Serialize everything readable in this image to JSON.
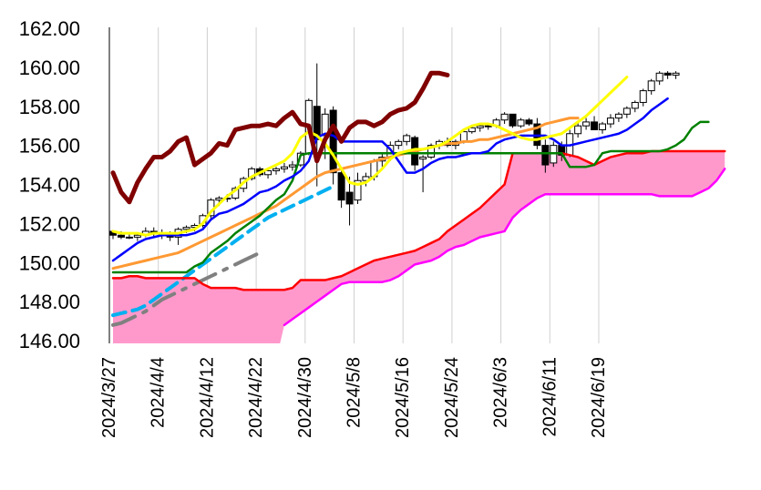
{
  "chart_data": {
    "type": "line",
    "title": "",
    "xlabel": "",
    "ylabel": "",
    "ylim": [
      146.0,
      162.0
    ],
    "yticks": [
      "162.00",
      "160.00",
      "158.00",
      "156.00",
      "154.00",
      "152.00",
      "150.00",
      "148.00",
      "146.00"
    ],
    "xticks": [
      "2024/3/27",
      "2024/4/4",
      "2024/4/12",
      "2024/4/22",
      "2024/4/30",
      "2024/5/8",
      "2024/5/16",
      "2024/5/24",
      "2024/6/3",
      "2024/6/11",
      "2024/6/19"
    ],
    "grid": "vertical",
    "legend": "none",
    "colors": {
      "candle_up": "#ffffff",
      "candle_down": "#000000",
      "cloud_fill": "#ff99cc",
      "span_a": "#ff0000",
      "span_b": "#ff00ff",
      "lagging": "#800000",
      "conversion": "#0000ff",
      "base": "#008000",
      "ma_short": "#ffff00",
      "ma_mid": "#ff9933",
      "ma_long_dash": "#00b0f0",
      "ma_longer_dashdot": "#808080"
    },
    "candles": {
      "first_date": "2024/3/27",
      "ohlc": [
        [
          151.6,
          151.6,
          151.2,
          151.4
        ],
        [
          151.4,
          151.6,
          151.2,
          151.3
        ],
        [
          151.3,
          151.5,
          151.2,
          151.3
        ],
        [
          151.3,
          151.5,
          151.1,
          151.4
        ],
        [
          151.4,
          151.8,
          151.3,
          151.6
        ],
        [
          151.6,
          151.8,
          151.3,
          151.5
        ],
        [
          151.5,
          151.7,
          151.2,
          151.4
        ],
        [
          151.4,
          151.6,
          151.1,
          151.3
        ],
        [
          151.3,
          151.8,
          150.9,
          151.7
        ],
        [
          151.7,
          151.9,
          151.5,
          151.8
        ],
        [
          151.8,
          152.0,
          151.6,
          151.9
        ],
        [
          151.9,
          152.5,
          151.8,
          152.4
        ],
        [
          152.4,
          153.3,
          152.2,
          153.2
        ],
        [
          153.2,
          153.4,
          152.9,
          153.3
        ],
        [
          153.3,
          153.5,
          153.1,
          153.3
        ],
        [
          153.3,
          153.9,
          153.2,
          153.8
        ],
        [
          153.8,
          154.4,
          153.6,
          154.3
        ],
        [
          154.3,
          154.9,
          154.2,
          154.8
        ],
        [
          154.8,
          154.9,
          154.4,
          154.5
        ],
        [
          154.5,
          154.8,
          154.3,
          154.7
        ],
        [
          154.7,
          154.9,
          154.5,
          154.8
        ],
        [
          154.8,
          155.1,
          154.6,
          154.9
        ],
        [
          154.9,
          155.2,
          154.7,
          155.0
        ],
        [
          155.0,
          155.7,
          154.9,
          155.6
        ],
        [
          155.6,
          158.4,
          155.5,
          158.3
        ],
        [
          158.0,
          160.2,
          153.9,
          156.3
        ],
        [
          156.5,
          157.9,
          155.3,
          157.6
        ],
        [
          157.8,
          158.0,
          154.0,
          154.6
        ],
        [
          154.6,
          154.7,
          152.8,
          153.2
        ],
        [
          153.6,
          154.4,
          151.9,
          153.0
        ],
        [
          153.2,
          154.6,
          153.0,
          154.2
        ],
        [
          154.2,
          154.6,
          153.9,
          154.4
        ],
        [
          154.4,
          155.3,
          154.2,
          155.2
        ],
        [
          155.2,
          155.6,
          154.9,
          155.4
        ],
        [
          155.4,
          156.2,
          155.2,
          156.0
        ],
        [
          156.0,
          156.3,
          155.8,
          156.2
        ],
        [
          156.2,
          156.6,
          156.0,
          156.5
        ],
        [
          156.4,
          156.5,
          154.7,
          155.0
        ],
        [
          155.3,
          155.5,
          153.6,
          155.4
        ],
        [
          155.4,
          156.1,
          155.3,
          156.0
        ],
        [
          156.0,
          156.3,
          155.8,
          156.2
        ],
        [
          156.2,
          156.4,
          155.9,
          156.0
        ],
        [
          156.0,
          156.3,
          155.8,
          156.2
        ],
        [
          156.2,
          156.8,
          156.1,
          156.7
        ],
        [
          156.7,
          157.0,
          156.6,
          156.9
        ],
        [
          156.9,
          157.1,
          156.7,
          157.0
        ],
        [
          157.0,
          157.1,
          156.8,
          157.0
        ],
        [
          157.0,
          157.4,
          156.9,
          157.3
        ],
        [
          157.3,
          157.7,
          157.1,
          157.6
        ],
        [
          157.6,
          157.6,
          156.9,
          157.0
        ],
        [
          157.0,
          157.4,
          156.9,
          157.3
        ],
        [
          157.3,
          157.4,
          157.0,
          157.1
        ],
        [
          157.1,
          157.4,
          155.8,
          156.0
        ],
        [
          156.0,
          156.3,
          154.6,
          155.0
        ],
        [
          155.1,
          156.2,
          154.9,
          156.0
        ],
        [
          156.0,
          156.2,
          155.2,
          155.5
        ],
        [
          155.5,
          156.8,
          155.4,
          156.6
        ],
        [
          156.6,
          157.2,
          156.4,
          157.0
        ],
        [
          157.0,
          157.4,
          156.8,
          157.2
        ],
        [
          157.2,
          157.5,
          156.9,
          156.8
        ],
        [
          156.8,
          157.2,
          156.6,
          157.1
        ],
        [
          157.1,
          157.6,
          156.9,
          157.4
        ],
        [
          157.4,
          157.7,
          157.2,
          157.6
        ],
        [
          157.6,
          158.0,
          157.4,
          157.9
        ],
        [
          157.9,
          158.3,
          157.7,
          158.2
        ],
        [
          158.2,
          158.9,
          158.0,
          158.8
        ],
        [
          158.8,
          159.4,
          158.6,
          159.3
        ],
        [
          159.3,
          159.8,
          159.1,
          159.7
        ],
        [
          159.7,
          159.8,
          159.4,
          159.6
        ],
        [
          159.6,
          159.8,
          159.4,
          159.7
        ]
      ]
    },
    "series": [
      {
        "key": "span_a",
        "values": [
          149.2,
          149.2,
          149.3,
          149.3,
          149.2,
          149.2,
          149.2,
          149.2,
          149.2,
          149.2,
          149.2,
          148.9,
          148.7,
          148.7,
          148.7,
          148.7,
          148.6,
          148.6,
          148.6,
          148.6,
          148.6,
          148.6,
          148.7,
          149.1,
          149.1,
          149.1,
          149.1,
          149.2,
          149.3,
          149.5,
          149.7,
          149.9,
          150.1,
          150.2,
          150.3,
          150.4,
          150.5,
          150.6,
          150.8,
          151.0,
          151.2,
          151.6,
          151.9,
          152.2,
          152.5,
          152.8,
          153.2,
          153.6,
          154.0,
          155.6,
          155.6,
          155.6,
          155.6,
          155.6,
          155.6,
          155.6,
          155.5,
          155.4,
          155.2,
          155.0,
          155.2,
          155.4,
          155.5,
          155.6,
          155.6,
          155.6,
          155.7,
          155.7,
          155.7,
          155.7,
          155.7,
          155.7,
          155.7,
          155.7,
          155.7,
          155.7
        ]
      },
      {
        "key": "span_b",
        "values": [
          null,
          null,
          null,
          null,
          null,
          null,
          null,
          null,
          null,
          null,
          null,
          null,
          null,
          null,
          null,
          null,
          null,
          null,
          null,
          null,
          null,
          146.8,
          147.1,
          147.4,
          147.7,
          148.0,
          148.3,
          148.6,
          148.9,
          149.0,
          149.0,
          149.0,
          149.0,
          149.0,
          149.1,
          149.3,
          149.6,
          149.9,
          150.0,
          150.1,
          150.3,
          150.6,
          150.8,
          150.9,
          151.1,
          151.3,
          151.4,
          151.5,
          151.6,
          152.3,
          152.7,
          153.0,
          153.3,
          153.5,
          153.5,
          153.5,
          153.5,
          153.5,
          153.5,
          153.5,
          153.5,
          153.5,
          153.5,
          153.5,
          153.5,
          153.5,
          153.5,
          153.4,
          153.4,
          153.4,
          153.4,
          153.4,
          153.6,
          153.8,
          154.2,
          154.8
        ]
      },
      {
        "key": "lagging",
        "values": [
          154.6,
          153.6,
          153.1,
          154.1,
          154.8,
          155.4,
          155.4,
          155.7,
          156.2,
          156.4,
          155.0,
          155.3,
          155.6,
          156.1,
          156.0,
          156.8,
          156.9,
          157.0,
          157.0,
          157.1,
          157.0,
          157.4,
          157.7,
          157.1,
          157.0,
          155.2,
          156.3,
          157.0,
          156.2,
          156.9,
          157.2,
          157.2,
          157.0,
          157.2,
          157.6,
          157.8,
          157.9,
          158.2,
          158.9,
          159.7,
          159.7,
          159.6
        ]
      },
      {
        "key": "conversion",
        "values": [
          150.1,
          150.4,
          150.7,
          151.0,
          151.2,
          151.3,
          151.4,
          151.4,
          151.4,
          151.4,
          151.5,
          151.7,
          152.2,
          152.5,
          152.6,
          152.8,
          153.0,
          153.3,
          153.6,
          153.7,
          153.9,
          154.2,
          154.4,
          154.7,
          155.2,
          156.4,
          156.6,
          156.5,
          156.2,
          156.2,
          156.2,
          156.2,
          156.2,
          156.2,
          155.8,
          155.2,
          154.6,
          154.6,
          154.8,
          155.1,
          155.3,
          155.4,
          155.4,
          155.5,
          155.6,
          155.6,
          155.7,
          156.1,
          156.3,
          156.4,
          156.5,
          156.5,
          156.5,
          156.5,
          156.3,
          156.0,
          156.0,
          156.1,
          156.2,
          156.3,
          156.4,
          156.5,
          156.6,
          156.8,
          157.1,
          157.4,
          157.8,
          158.1,
          158.4
        ]
      },
      {
        "key": "base",
        "values": [
          149.5,
          149.5,
          149.5,
          149.5,
          149.5,
          149.5,
          149.5,
          149.5,
          149.5,
          149.5,
          149.8,
          150.0,
          150.5,
          150.8,
          151.1,
          151.5,
          151.8,
          152.1,
          152.4,
          152.8,
          153.2,
          153.5,
          154.2,
          155.5,
          155.6,
          155.6,
          155.6,
          155.6,
          155.6,
          155.6,
          155.6,
          155.6,
          155.6,
          155.6,
          155.6,
          155.6,
          155.6,
          155.6,
          155.6,
          155.6,
          155.6,
          155.6,
          155.6,
          155.6,
          155.6,
          155.6,
          155.6,
          155.6,
          155.6,
          155.6,
          155.6,
          155.6,
          155.6,
          155.6,
          155.6,
          155.6,
          154.9,
          154.9,
          154.9,
          155.0,
          155.6,
          155.7,
          155.7,
          155.7,
          155.7,
          155.7,
          155.7,
          155.7,
          155.8,
          156.0,
          156.3,
          156.9,
          157.2,
          157.2
        ]
      },
      {
        "key": "ma_short",
        "values": [
          151.6,
          151.5,
          151.5,
          151.5,
          151.4,
          151.5,
          151.5,
          151.5,
          151.5,
          151.6,
          151.7,
          152.0,
          152.6,
          153.0,
          153.4,
          153.7,
          154.1,
          154.4,
          154.6,
          154.8,
          155.0,
          155.2,
          155.6,
          156.4,
          156.7,
          156.5,
          156.1,
          155.5,
          154.8,
          154.1,
          154.0,
          154.1,
          154.4,
          154.8,
          155.3,
          155.6,
          155.7,
          155.8,
          155.8,
          155.9,
          156.0,
          156.2,
          156.5,
          156.8,
          157.0,
          157.1,
          157.1,
          157.0,
          156.8,
          156.6,
          156.4,
          156.3,
          156.3,
          156.4,
          156.5,
          156.6,
          156.9,
          157.2,
          157.5,
          157.9,
          158.3,
          158.7,
          159.1,
          159.5
        ]
      },
      {
        "key": "ma_mid",
        "values": [
          149.7,
          149.8,
          149.9,
          150.0,
          150.1,
          150.2,
          150.3,
          150.4,
          150.5,
          150.7,
          150.9,
          151.1,
          151.3,
          151.5,
          151.7,
          151.9,
          152.1,
          152.3,
          152.5,
          152.7,
          152.9,
          153.2,
          153.5,
          153.8,
          154.1,
          154.4,
          154.6,
          154.7,
          154.8,
          154.9,
          155.0,
          155.1,
          155.2,
          155.3,
          155.4,
          155.5,
          155.6,
          155.7,
          155.8,
          155.9,
          156.0,
          156.1,
          156.1,
          156.2,
          156.2,
          156.3,
          156.3,
          156.4,
          156.5,
          156.6,
          156.7,
          156.8,
          156.9,
          157.1,
          157.2,
          157.3,
          157.4,
          157.4
        ]
      },
      {
        "key": "ma_long_dash",
        "values": [
          147.3,
          147.4,
          147.5,
          147.6,
          147.8,
          148.1,
          148.4,
          148.7,
          149.0,
          149.3,
          149.6,
          149.9,
          150.2,
          150.5,
          150.8,
          151.1,
          151.4,
          151.7,
          152.0,
          152.3,
          152.5,
          152.7,
          152.9,
          153.1,
          153.3,
          153.5,
          153.7,
          153.9
        ]
      },
      {
        "key": "ma_longer_dashdot",
        "values": [
          146.8,
          146.9,
          147.1,
          147.3,
          147.5,
          147.8,
          148.1,
          148.3,
          148.5,
          148.7,
          148.9,
          149.1,
          149.3,
          149.5,
          149.7,
          149.9,
          150.1,
          150.3,
          150.5
        ]
      }
    ]
  }
}
